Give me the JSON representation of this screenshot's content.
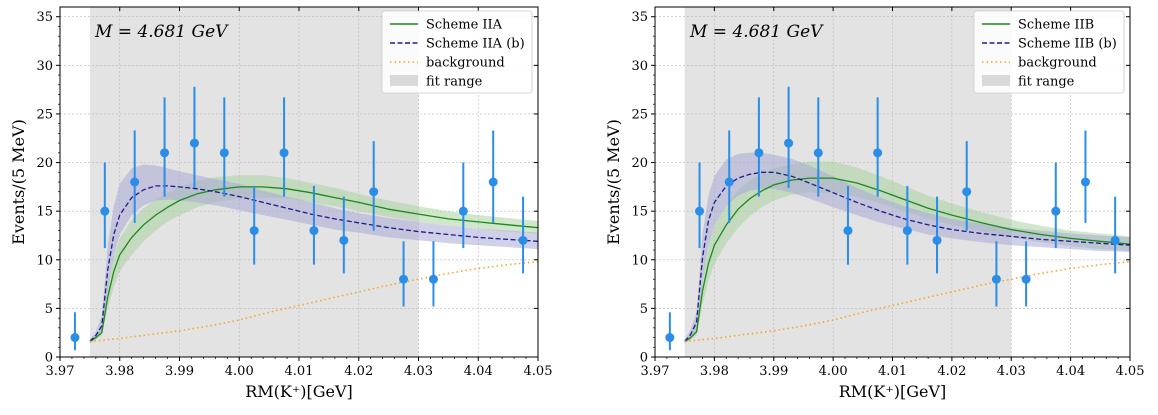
{
  "chart_data": [
    {
      "type": "line",
      "panel": "left",
      "annotation": "M = 4.681 GeV",
      "xlabel": "RM(K⁺)[GeV]",
      "ylabel": "Events/(5 MeV)",
      "xlim": [
        3.97,
        4.05
      ],
      "ylim": [
        0,
        36
      ],
      "xticks": [
        "3.97",
        "3.98",
        "3.99",
        "4.00",
        "4.01",
        "4.02",
        "4.03",
        "4.04",
        "4.05"
      ],
      "yticks": [
        "0",
        "5",
        "10",
        "15",
        "20",
        "25",
        "30",
        "35"
      ],
      "grid": true,
      "legend_position": "top-right",
      "fit_range": [
        3.975,
        4.03
      ],
      "colors": {
        "solid": "#1a8a1a",
        "dashed": "#1c1c8c",
        "background": "#f5a623",
        "points": "#2a8de8",
        "fit_range": "#d9d9d9",
        "band_solid": "#a9d3a0",
        "band_dashed": "#a9a9d6"
      },
      "legend": [
        {
          "label": "Scheme IIA",
          "style": "solid"
        },
        {
          "label": "Scheme IIA (b)",
          "style": "dashed"
        },
        {
          "label": "background",
          "style": "dotted"
        },
        {
          "label": "fit range",
          "style": "patch"
        }
      ],
      "data_points": {
        "x": [
          3.9725,
          3.9775,
          3.9825,
          3.9875,
          3.9925,
          3.9975,
          4.0025,
          4.0075,
          4.0125,
          4.0175,
          4.0225,
          4.0275,
          4.0325,
          4.0375,
          4.0425,
          4.0475
        ],
        "y": [
          2,
          15,
          18,
          21,
          22,
          21,
          13,
          21,
          13,
          12,
          17,
          8,
          8,
          15,
          18,
          12
        ],
        "yerr_low": [
          1.3,
          3.8,
          4.2,
          4.5,
          4.6,
          4.5,
          3.5,
          4.5,
          3.5,
          3.4,
          4.0,
          2.8,
          2.8,
          3.8,
          4.2,
          3.4
        ],
        "yerr_high": [
          2.6,
          5.0,
          5.3,
          5.7,
          5.8,
          5.7,
          4.6,
          5.7,
          4.6,
          4.5,
          5.2,
          3.9,
          3.9,
          5.0,
          5.3,
          4.5
        ]
      },
      "series": [
        {
          "name": "Scheme IIA",
          "style": "solid",
          "x": [
            3.975,
            3.976,
            3.977,
            3.978,
            3.979,
            3.98,
            3.982,
            3.984,
            3.986,
            3.988,
            3.99,
            3.993,
            3.996,
            4.0,
            4.004,
            4.008,
            4.012,
            4.016,
            4.02,
            4.025,
            4.03,
            4.035,
            4.04,
            4.045,
            4.05
          ],
          "y": [
            1.6,
            2.0,
            2.5,
            6.2,
            8.8,
            10.5,
            12.3,
            13.6,
            14.6,
            15.4,
            16.1,
            16.8,
            17.2,
            17.5,
            17.5,
            17.3,
            16.9,
            16.4,
            15.9,
            15.2,
            14.7,
            14.2,
            13.9,
            13.6,
            13.3
          ],
          "band_low": [
            1.4,
            1.8,
            2.2,
            5.0,
            7.2,
            8.8,
            10.5,
            11.9,
            13.0,
            13.9,
            14.6,
            15.4,
            15.9,
            16.3,
            16.4,
            16.3,
            15.9,
            15.5,
            15.0,
            14.4,
            13.9,
            13.5,
            13.2,
            12.9,
            12.7
          ],
          "band_high": [
            1.8,
            2.3,
            3.0,
            7.6,
            10.4,
            12.2,
            14.1,
            15.3,
            16.2,
            16.9,
            17.5,
            18.1,
            18.5,
            18.7,
            18.7,
            18.4,
            17.9,
            17.4,
            16.8,
            16.1,
            15.5,
            15.0,
            14.6,
            14.3,
            14.0
          ]
        },
        {
          "name": "Scheme IIA (b)",
          "style": "dashed",
          "x": [
            3.975,
            3.976,
            3.977,
            3.978,
            3.979,
            3.98,
            3.982,
            3.984,
            3.986,
            3.988,
            3.99,
            3.993,
            3.996,
            4.0,
            4.004,
            4.008,
            4.012,
            4.016,
            4.02,
            4.025,
            4.03,
            4.035,
            4.04,
            4.045,
            4.05
          ],
          "y": [
            1.6,
            2.2,
            3.2,
            9.0,
            12.6,
            14.6,
            16.4,
            17.2,
            17.6,
            17.6,
            17.5,
            17.3,
            17.0,
            16.5,
            15.9,
            15.3,
            14.7,
            14.2,
            13.8,
            13.3,
            12.9,
            12.6,
            12.3,
            12.1,
            11.9
          ],
          "band_low": [
            1.4,
            1.8,
            2.5,
            7.0,
            10.4,
            12.6,
            14.6,
            15.6,
            16.1,
            16.2,
            16.1,
            15.9,
            15.6,
            15.1,
            14.6,
            14.1,
            13.6,
            13.1,
            12.8,
            12.3,
            12.0,
            11.7,
            11.5,
            11.3,
            11.1
          ],
          "band_high": [
            1.8,
            2.6,
            4.2,
            11.5,
            15.5,
            17.8,
            19.4,
            19.8,
            19.7,
            19.4,
            19.1,
            18.7,
            18.3,
            17.8,
            17.1,
            16.5,
            15.9,
            15.3,
            14.8,
            14.3,
            13.9,
            13.5,
            13.2,
            13.0,
            12.8
          ]
        },
        {
          "name": "background",
          "style": "dotted",
          "x": [
            3.975,
            3.98,
            3.985,
            3.99,
            3.995,
            4.0,
            4.005,
            4.01,
            4.015,
            4.02,
            4.025,
            4.03,
            4.035,
            4.04,
            4.045,
            4.05
          ],
          "y": [
            1.6,
            1.9,
            2.3,
            2.7,
            3.2,
            3.8,
            4.6,
            5.3,
            6.0,
            6.7,
            7.4,
            8.0,
            8.6,
            9.1,
            9.5,
            9.8
          ]
        }
      ]
    },
    {
      "type": "line",
      "panel": "right",
      "annotation": "M = 4.681 GeV",
      "xlabel": "RM(K⁺)[GeV]",
      "ylabel": "Events/(5 MeV)",
      "xlim": [
        3.97,
        4.05
      ],
      "ylim": [
        0,
        36
      ],
      "xticks": [
        "3.97",
        "3.98",
        "3.99",
        "4.00",
        "4.01",
        "4.02",
        "4.03",
        "4.04",
        "4.05"
      ],
      "yticks": [
        "0",
        "5",
        "10",
        "15",
        "20",
        "25",
        "30",
        "35"
      ],
      "grid": true,
      "legend_position": "top-right",
      "fit_range": [
        3.975,
        4.03
      ],
      "colors": {
        "solid": "#1a8a1a",
        "dashed": "#1c1c8c",
        "background": "#f5a623",
        "points": "#2a8de8",
        "fit_range": "#d9d9d9",
        "band_solid": "#a9d3a0",
        "band_dashed": "#a9a9d6"
      },
      "legend": [
        {
          "label": "Scheme IIB",
          "style": "solid"
        },
        {
          "label": "Scheme IIB (b)",
          "style": "dashed"
        },
        {
          "label": "background",
          "style": "dotted"
        },
        {
          "label": "fit range",
          "style": "patch"
        }
      ],
      "data_points": {
        "x": [
          3.9725,
          3.9775,
          3.9825,
          3.9875,
          3.9925,
          3.9975,
          4.0025,
          4.0075,
          4.0125,
          4.0175,
          4.0225,
          4.0275,
          4.0325,
          4.0375,
          4.0425,
          4.0475
        ],
        "y": [
          2,
          15,
          18,
          21,
          22,
          21,
          13,
          21,
          13,
          12,
          17,
          8,
          8,
          15,
          18,
          12
        ],
        "yerr_low": [
          1.3,
          3.8,
          4.2,
          4.5,
          4.6,
          4.5,
          3.5,
          4.5,
          3.5,
          3.4,
          4.0,
          2.8,
          2.8,
          3.8,
          4.2,
          3.4
        ],
        "yerr_high": [
          2.6,
          5.0,
          5.3,
          5.7,
          5.8,
          5.7,
          4.6,
          5.7,
          4.6,
          4.5,
          5.2,
          3.9,
          3.9,
          5.0,
          5.3,
          4.5
        ]
      },
      "series": [
        {
          "name": "Scheme IIB",
          "style": "solid",
          "x": [
            3.975,
            3.976,
            3.977,
            3.978,
            3.979,
            3.98,
            3.982,
            3.984,
            3.986,
            3.988,
            3.99,
            3.993,
            3.996,
            4.0,
            4.004,
            4.008,
            4.012,
            4.016,
            4.02,
            4.025,
            4.03,
            4.035,
            4.04,
            4.045,
            4.05
          ],
          "y": [
            1.6,
            2.0,
            2.6,
            6.8,
            9.6,
            11.5,
            13.6,
            15.2,
            16.3,
            17.1,
            17.7,
            18.2,
            18.4,
            18.4,
            17.9,
            17.1,
            16.2,
            15.3,
            14.6,
            13.8,
            13.1,
            12.6,
            12.2,
            11.9,
            11.6
          ],
          "band_low": [
            1.4,
            1.8,
            2.2,
            5.4,
            7.8,
            9.6,
            11.7,
            13.3,
            14.5,
            15.4,
            16.1,
            16.7,
            16.9,
            16.9,
            16.5,
            15.8,
            15.0,
            14.2,
            13.6,
            12.9,
            12.3,
            11.8,
            11.4,
            11.1,
            10.9
          ],
          "band_high": [
            1.8,
            2.3,
            3.1,
            8.4,
            11.6,
            13.6,
            15.7,
            17.2,
            18.2,
            18.9,
            19.4,
            19.8,
            20.1,
            20.1,
            19.5,
            18.6,
            17.6,
            16.6,
            15.8,
            14.9,
            14.1,
            13.5,
            13.0,
            12.7,
            12.4
          ]
        },
        {
          "name": "Scheme IIB (b)",
          "style": "dashed",
          "x": [
            3.975,
            3.976,
            3.977,
            3.978,
            3.979,
            3.98,
            3.982,
            3.984,
            3.986,
            3.988,
            3.99,
            3.993,
            3.996,
            4.0,
            4.004,
            4.008,
            4.012,
            4.016,
            4.02,
            4.025,
            4.03,
            4.035,
            4.04,
            4.045,
            4.05
          ],
          "y": [
            1.6,
            2.3,
            3.6,
            10.2,
            14.0,
            15.9,
            17.6,
            18.4,
            18.8,
            19.0,
            19.0,
            18.6,
            17.9,
            16.9,
            15.9,
            15.0,
            14.2,
            13.6,
            13.1,
            12.7,
            12.4,
            12.1,
            11.9,
            11.7,
            11.5
          ],
          "band_low": [
            1.4,
            1.8,
            2.8,
            8.0,
            11.6,
            13.6,
            15.6,
            16.6,
            17.1,
            17.3,
            17.3,
            16.9,
            16.3,
            15.4,
            14.6,
            13.8,
            13.2,
            12.6,
            12.2,
            11.8,
            11.5,
            11.3,
            11.1,
            10.9,
            10.8
          ],
          "band_high": [
            1.8,
            2.8,
            4.6,
            12.6,
            16.6,
            18.6,
            20.3,
            20.9,
            21.0,
            21.0,
            20.8,
            20.4,
            19.7,
            18.6,
            17.4,
            16.4,
            15.5,
            14.8,
            14.2,
            13.7,
            13.3,
            13.0,
            12.7,
            12.5,
            12.3
          ]
        },
        {
          "name": "background",
          "style": "dotted",
          "x": [
            3.975,
            3.98,
            3.985,
            3.99,
            3.995,
            4.0,
            4.005,
            4.01,
            4.015,
            4.02,
            4.025,
            4.03,
            4.035,
            4.04,
            4.045,
            4.05
          ],
          "y": [
            1.6,
            1.9,
            2.3,
            2.7,
            3.2,
            3.8,
            4.6,
            5.3,
            6.0,
            6.7,
            7.4,
            8.0,
            8.6,
            9.1,
            9.5,
            9.8
          ]
        }
      ]
    }
  ]
}
